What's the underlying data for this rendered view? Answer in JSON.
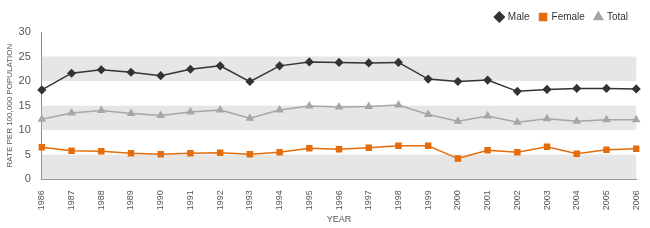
{
  "chart_data": {
    "type": "line",
    "x_label": "YEAR",
    "y_label": "RATE PER 100,000 POPULATION",
    "categories": [
      "1986",
      "1987",
      "1988",
      "1989",
      "1990",
      "1991",
      "1992",
      "1993",
      "1994",
      "1995",
      "1996",
      "1997",
      "1998",
      "1999",
      "2000",
      "2001",
      "2002",
      "2003",
      "2004",
      "2005",
      "2006"
    ],
    "series": [
      {
        "name": "Male",
        "color": "#333333",
        "marker": "diamond",
        "values": [
          18.2,
          21.6,
          22.3,
          21.8,
          21.1,
          22.4,
          23.1,
          19.9,
          23.1,
          23.9,
          23.8,
          23.7,
          23.8,
          20.4,
          19.9,
          20.2,
          17.9,
          18.3,
          18.5,
          18.5,
          18.4
        ]
      },
      {
        "name": "Female",
        "color": "#e46c0a",
        "marker": "square",
        "values": [
          6.5,
          5.8,
          5.7,
          5.3,
          5.1,
          5.3,
          5.4,
          5.1,
          5.5,
          6.3,
          6.1,
          6.4,
          6.8,
          6.8,
          4.2,
          5.9,
          5.5,
          6.6,
          5.2,
          6.0,
          6.2
        ]
      },
      {
        "name": "Total",
        "color": "#a6a6a6",
        "marker": "triangle",
        "values": [
          12.2,
          13.5,
          14.0,
          13.4,
          13.0,
          13.7,
          14.1,
          12.4,
          14.1,
          14.9,
          14.7,
          14.8,
          15.1,
          13.2,
          11.8,
          12.9,
          11.6,
          12.3,
          11.8,
          12.1,
          12.1
        ]
      }
    ],
    "ylim": [
      0,
      30
    ],
    "yticks": [
      0,
      5,
      10,
      15,
      20,
      25,
      30
    ],
    "grid": true,
    "legend": "top-right"
  }
}
